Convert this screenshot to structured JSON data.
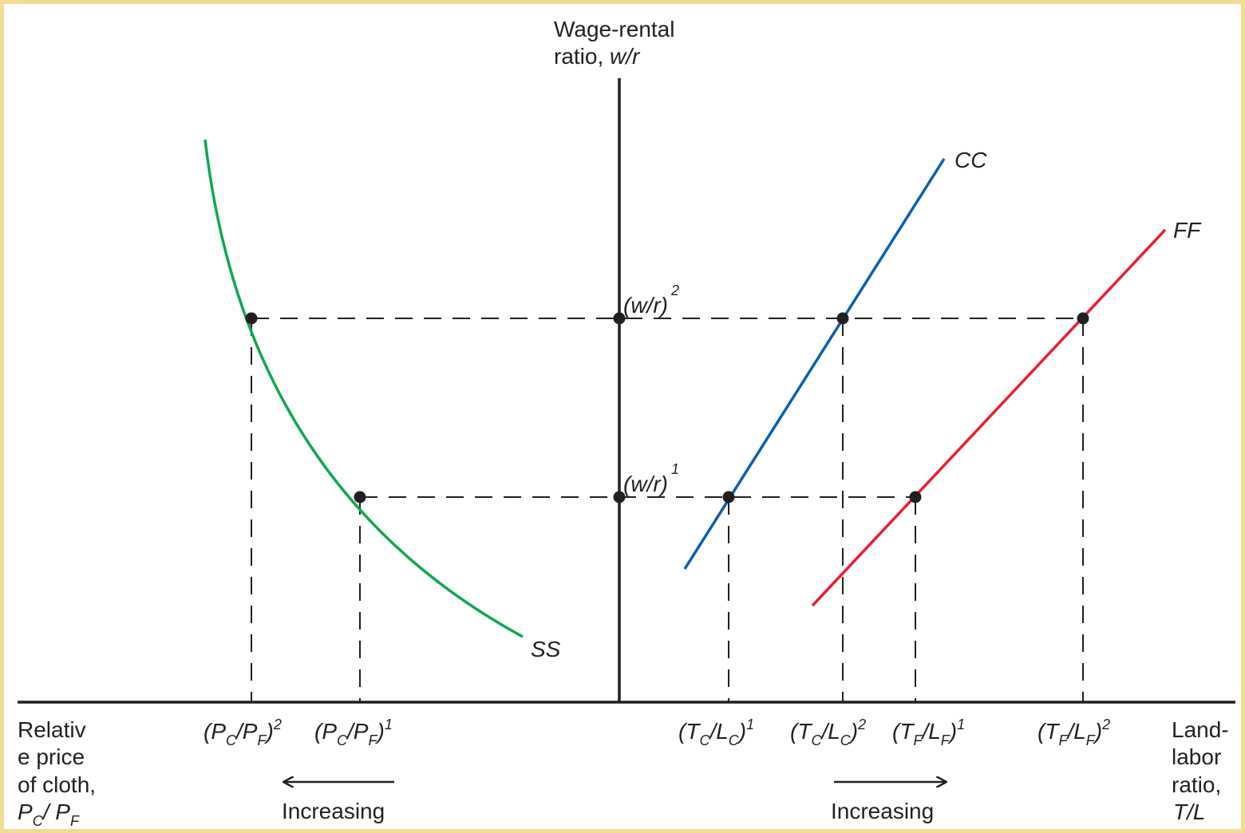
{
  "vertical_axis": {
    "label_line1": "Wage-rental",
    "label_line2": "ratio, ",
    "label_italic": "w/r"
  },
  "left_axis": {
    "lines": [
      "Relativ",
      "e price",
      "of cloth,"
    ],
    "symbol": {
      "a": "P",
      "a_sub": "C",
      "sep": "/ ",
      "b": "P",
      "b_sub": "F"
    }
  },
  "right_axis": {
    "lines": [
      "Land-",
      "labor",
      "ratio,"
    ],
    "symbol": "T/L"
  },
  "curves": {
    "ss": {
      "label": "SS",
      "color": "#10a850"
    },
    "cc": {
      "label": "CC",
      "color": "#0a5fb0"
    },
    "ff": {
      "label": "FF",
      "color": "#e8202e"
    }
  },
  "wage_levels": [
    {
      "base": "(w/r)",
      "sup": "1"
    },
    {
      "base": "(w/r)",
      "sup": "2"
    }
  ],
  "price_ticks": [
    {
      "a": "P",
      "a_sub": "C",
      "b": "P",
      "b_sub": "F",
      "sup": "2"
    },
    {
      "a": "P",
      "a_sub": "C",
      "b": "P",
      "b_sub": "F",
      "sup": "1"
    }
  ],
  "ratio_ticks": [
    {
      "a": "T",
      "a_sub": "C",
      "b": "L",
      "b_sub": "C",
      "sup": "1"
    },
    {
      "a": "T",
      "a_sub": "C",
      "b": "L",
      "b_sub": "C",
      "sup": "2"
    },
    {
      "a": "T",
      "a_sub": "F",
      "b": "L",
      "b_sub": "F",
      "sup": "1"
    },
    {
      "a": "T",
      "a_sub": "F",
      "b": "L",
      "b_sub": "F",
      "sup": "2"
    }
  ],
  "arrows": {
    "left_label": "Increasing",
    "right_label": "Increasing"
  },
  "colors": {
    "axis": "#231f20",
    "frame": "#f2dc94"
  }
}
